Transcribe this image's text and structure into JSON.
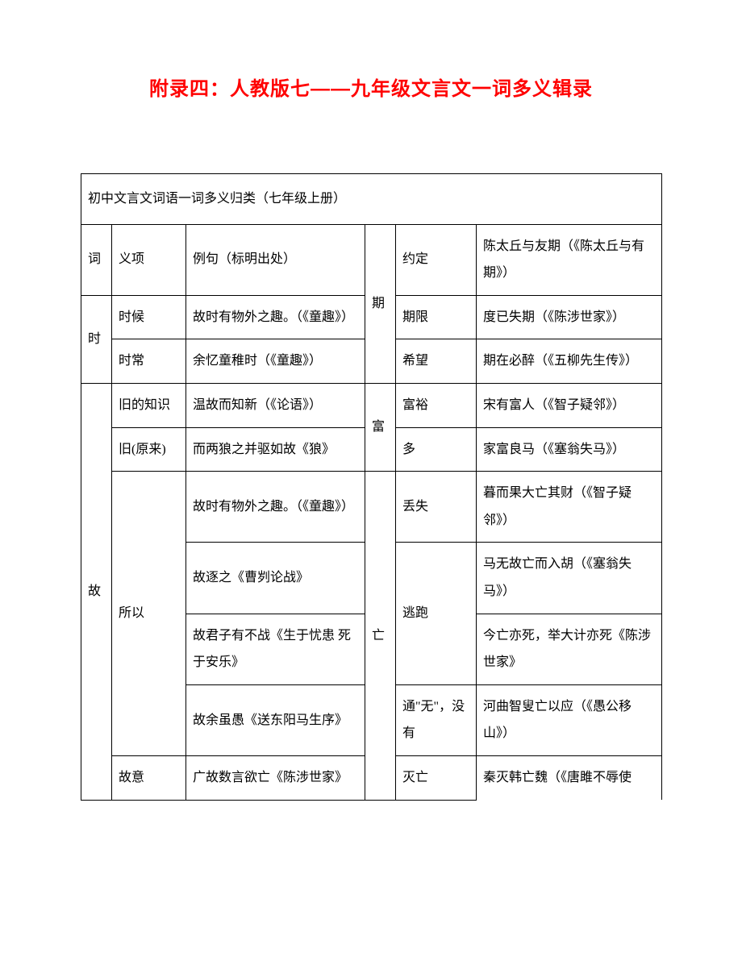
{
  "title": "附录四：人教版七——九年级文言文一词多义辑录",
  "tableHeader": "初中文言文词语一词多义归类（七年级上册）",
  "hdr": {
    "c1": "词",
    "c2": "义项",
    "c3": "例句（标明出处）",
    "c5": "约定",
    "c6": "陈太丘与友期（《陈太丘与有期》）"
  },
  "r2": {
    "c1": "时",
    "c2": "时候",
    "c3": "故时有物外之趣。（《童趣》）",
    "c4": "期",
    "c5": "期限",
    "c6": "度已失期（《陈涉世家》）"
  },
  "r3": {
    "c2": "时常",
    "c3": "余忆童稚时（《童趣》）",
    "c5": "希望",
    "c6": "期在必醉（《五柳先生传》）"
  },
  "r4": {
    "c1": "故",
    "c2": "旧的知识",
    "c3": "温故而知新（《论语》）",
    "c4": "富",
    "c5": "富裕",
    "c6": "宋有富人（《智子疑邻》）"
  },
  "r5": {
    "c2": "旧(原来)",
    "c3": "而两狼之并驱如故《狼》",
    "c5": "多",
    "c6": "家富良马（《塞翁失马》）"
  },
  "r6": {
    "c2": "所以",
    "c3": "故时有物外之趣。（《童趣》）",
    "c4": "亡",
    "c5": "丢失",
    "c6": "暮而果大亡其财（《智子疑邻》）"
  },
  "r7": {
    "c3": "故逐之《曹刿论战》",
    "c5": "逃跑",
    "c6": "马无故亡而入胡（《塞翁失马》）"
  },
  "r8": {
    "c3": "故君子有不战《生于忧患 死于安乐》",
    "c6": "今亡亦死，举大计亦死《陈涉世家》"
  },
  "r9": {
    "c3": "故余虽愚《送东阳马生序》",
    "c5": "通\"无\"，没有",
    "c6": "河曲智叟亡以应（《愚公移山》）"
  },
  "r10": {
    "c2": "故意",
    "c3": "广故数言欲亡《陈涉世家》",
    "c5": "灭亡",
    "c6": "秦灭韩亡魏（《唐雎不辱使"
  }
}
